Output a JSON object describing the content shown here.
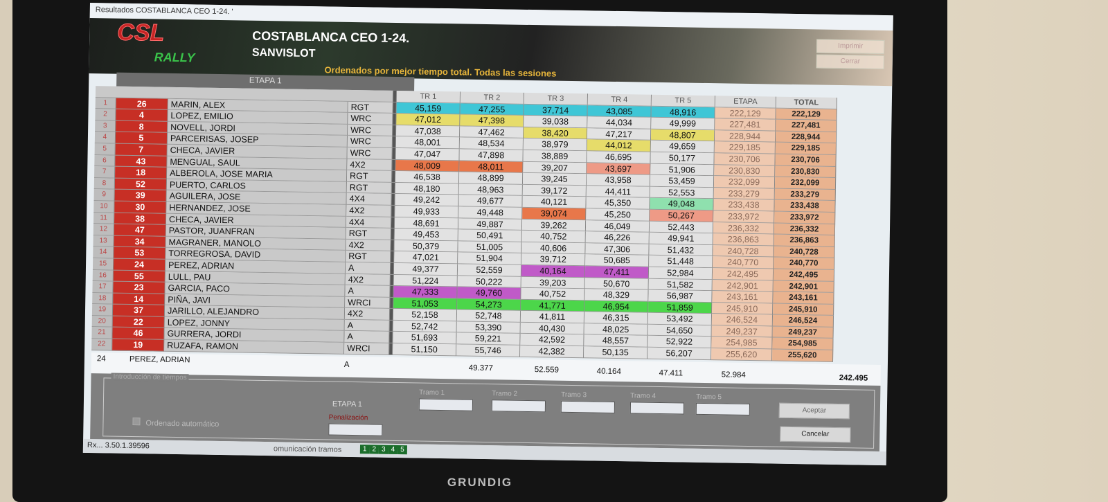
{
  "window_title": "Resultados COSTABLANCA CEO 1-24. '",
  "banner": {
    "logo_top": "CSL",
    "logo_bottom": "RALLY",
    "title": "COSTABLANCA CEO 1-24.",
    "subtitle": "SANVISLOT",
    "sort_note": "Ordenados por mejor tiempo total. Todas las sesiones",
    "btn_print": "Imprimir",
    "btn_close": "Cerrar"
  },
  "table": {
    "stage_header": "ETAPA 1",
    "columns": [
      "TR 1",
      "TR 2",
      "TR 3",
      "TR 4",
      "TR 5",
      "ETAPA",
      "TOTAL"
    ],
    "highlight_colors": {
      "cyan": "#3fc6d6",
      "yellow": "#e6dc6a",
      "orange": "#e8774a",
      "salmon": "#ee9a86",
      "magenta": "#c05ac8",
      "green": "#4cd64a",
      "mint": "#8fe0ae"
    },
    "rows": [
      {
        "pos": "1",
        "num": "26",
        "name": "MARIN, ALEX",
        "cls": "RGT",
        "t": [
          "45,159",
          "47,255",
          "37,714",
          "43,085",
          "48,916"
        ],
        "etapa": "222,129",
        "total": "222,129",
        "hl": [
          "cyan",
          "cyan",
          "cyan",
          "cyan",
          "cyan"
        ]
      },
      {
        "pos": "2",
        "num": "4",
        "name": "LOPEZ, EMILIO",
        "cls": "WRC",
        "t": [
          "47,012",
          "47,398",
          "39,038",
          "44,034",
          "49,999"
        ],
        "etapa": "227,481",
        "total": "227,481",
        "hl": [
          "yellow",
          "yellow",
          null,
          null,
          null
        ]
      },
      {
        "pos": "3",
        "num": "8",
        "name": "NOVELL, JORDI",
        "cls": "WRC",
        "t": [
          "47,038",
          "47,462",
          "38,420",
          "47,217",
          "48,807"
        ],
        "etapa": "228,944",
        "total": "228,944",
        "hl": [
          null,
          null,
          "yellow",
          null,
          "yellow"
        ]
      },
      {
        "pos": "4",
        "num": "5",
        "name": "PARCERISAS, JOSEP",
        "cls": "WRC",
        "t": [
          "48,001",
          "48,534",
          "38,979",
          "44,012",
          "49,659"
        ],
        "etapa": "229,185",
        "total": "229,185",
        "hl": [
          null,
          null,
          null,
          "yellow",
          null
        ]
      },
      {
        "pos": "5",
        "num": "7",
        "name": "CHECA, JAVIER",
        "cls": "WRC",
        "t": [
          "47,047",
          "47,898",
          "38,889",
          "46,695",
          "50,177"
        ],
        "etapa": "230,706",
        "total": "230,706",
        "hl": [
          null,
          null,
          null,
          null,
          null
        ]
      },
      {
        "pos": "6",
        "num": "43",
        "name": "MENGUAL, SAUL",
        "cls": "4X2",
        "t": [
          "48,009",
          "48,011",
          "39,207",
          "43,697",
          "51,906"
        ],
        "etapa": "230,830",
        "total": "230,830",
        "hl": [
          "orange",
          "orange",
          null,
          "salmon",
          null
        ]
      },
      {
        "pos": "7",
        "num": "18",
        "name": "ALBEROLA, JOSE MARIA",
        "cls": "RGT",
        "t": [
          "46,538",
          "48,899",
          "39,245",
          "43,958",
          "53,459"
        ],
        "etapa": "232,099",
        "total": "232,099",
        "hl": [
          null,
          null,
          null,
          null,
          null
        ]
      },
      {
        "pos": "8",
        "num": "52",
        "name": "PUERTO, CARLOS",
        "cls": "RGT",
        "t": [
          "48,180",
          "48,963",
          "39,172",
          "44,411",
          "52,553"
        ],
        "etapa": "233,279",
        "total": "233,279",
        "hl": [
          null,
          null,
          null,
          null,
          null
        ]
      },
      {
        "pos": "9",
        "num": "39",
        "name": "AGUILERA, JOSE",
        "cls": "4X4",
        "t": [
          "49,242",
          "49,677",
          "40,121",
          "45,350",
          "49,048"
        ],
        "etapa": "233,438",
        "total": "233,438",
        "hl": [
          null,
          null,
          null,
          null,
          "mint"
        ]
      },
      {
        "pos": "10",
        "num": "30",
        "name": "HERNANDEZ, JOSE",
        "cls": "4X2",
        "t": [
          "49,933",
          "49,448",
          "39,074",
          "45,250",
          "50,267"
        ],
        "etapa": "233,972",
        "total": "233,972",
        "hl": [
          null,
          null,
          "orange",
          null,
          "salmon"
        ]
      },
      {
        "pos": "11",
        "num": "38",
        "name": "CHECA, JAVIER",
        "cls": "4X4",
        "t": [
          "48,691",
          "49,887",
          "39,262",
          "46,049",
          "52,443"
        ],
        "etapa": "236,332",
        "total": "236,332",
        "hl": [
          null,
          null,
          null,
          null,
          null
        ]
      },
      {
        "pos": "12",
        "num": "47",
        "name": "PASTOR, JUANFRAN",
        "cls": "RGT",
        "t": [
          "49,453",
          "50,491",
          "40,752",
          "46,226",
          "49,941"
        ],
        "etapa": "236,863",
        "total": "236,863",
        "hl": [
          null,
          null,
          null,
          null,
          null
        ]
      },
      {
        "pos": "13",
        "num": "34",
        "name": "MAGRANER, MANOLO",
        "cls": "4X2",
        "t": [
          "50,379",
          "51,005",
          "40,606",
          "47,306",
          "51,432"
        ],
        "etapa": "240,728",
        "total": "240,728",
        "hl": [
          null,
          null,
          null,
          null,
          null
        ]
      },
      {
        "pos": "14",
        "num": "53",
        "name": "TORREGROSA, DAVID",
        "cls": "RGT",
        "t": [
          "47,021",
          "51,904",
          "39,712",
          "50,685",
          "51,448"
        ],
        "etapa": "240,770",
        "total": "240,770",
        "hl": [
          null,
          null,
          null,
          null,
          null
        ]
      },
      {
        "pos": "15",
        "num": "24",
        "name": "PEREZ, ADRIAN",
        "cls": "A",
        "t": [
          "49,377",
          "52,559",
          "40,164",
          "47,411",
          "52,984"
        ],
        "etapa": "242,495",
        "total": "242,495",
        "hl": [
          null,
          null,
          "magenta",
          "magenta",
          null
        ]
      },
      {
        "pos": "16",
        "num": "55",
        "name": "LULL, PAU",
        "cls": "4X2",
        "t": [
          "51,224",
          "50,222",
          "39,203",
          "50,670",
          "51,582"
        ],
        "etapa": "242,901",
        "total": "242,901",
        "hl": [
          null,
          null,
          null,
          null,
          null
        ]
      },
      {
        "pos": "17",
        "num": "23",
        "name": "GARCIA, PACO",
        "cls": "A",
        "t": [
          "47,333",
          "49,760",
          "40,752",
          "48,329",
          "56,987"
        ],
        "etapa": "243,161",
        "total": "243,161",
        "hl": [
          "magenta",
          "magenta",
          null,
          null,
          null
        ]
      },
      {
        "pos": "18",
        "num": "14",
        "name": "PIÑA, JAVI",
        "cls": "WRCI",
        "t": [
          "51,053",
          "54,273",
          "41,771",
          "46,954",
          "51,859"
        ],
        "etapa": "245,910",
        "total": "245,910",
        "hl": [
          "green",
          "green",
          "green",
          "green",
          "green"
        ]
      },
      {
        "pos": "19",
        "num": "37",
        "name": "JARILLO, ALEJANDRO",
        "cls": "4X2",
        "t": [
          "52,158",
          "52,748",
          "41,811",
          "46,315",
          "53,492"
        ],
        "etapa": "246,524",
        "total": "246,524",
        "hl": [
          null,
          null,
          null,
          null,
          null
        ]
      },
      {
        "pos": "20",
        "num": "22",
        "name": "LOPEZ, JONNY",
        "cls": "A",
        "t": [
          "52,742",
          "53,390",
          "40,430",
          "48,025",
          "54,650"
        ],
        "etapa": "249,237",
        "total": "249,237",
        "hl": [
          null,
          null,
          null,
          null,
          null
        ]
      },
      {
        "pos": "21",
        "num": "46",
        "name": "GURRERA, JORDI",
        "cls": "A",
        "t": [
          "51,693",
          "59,221",
          "42,592",
          "48,557",
          "52,922"
        ],
        "etapa": "254,985",
        "total": "254,985",
        "hl": [
          null,
          null,
          null,
          null,
          null
        ]
      },
      {
        "pos": "22",
        "num": "19",
        "name": "RUZAFA, RAMON",
        "cls": "WRCI",
        "t": [
          "51,150",
          "55,746",
          "42,382",
          "50,135",
          "56,207"
        ],
        "etapa": "255,620",
        "total": "255,620",
        "hl": [
          null,
          null,
          null,
          null,
          null
        ]
      }
    ]
  },
  "selected": {
    "num": "24",
    "name": "PEREZ, ADRIAN",
    "cls": "A",
    "t": [
      "49.377",
      "52.559",
      "40.164",
      "47.411",
      "52.984"
    ],
    "total": "242.495"
  },
  "entry": {
    "legend": "Introducción de tiempos",
    "stage_label": "ETAPA 1",
    "tramo_labels": [
      "Tramo 1",
      "Tramo 2",
      "Tramo 3",
      "Tramo 4",
      "Tramo 5"
    ],
    "penalty_label": "Penalización",
    "auto_sort_label": "Ordenado automático",
    "auto_sort_checked": false,
    "accept": "Aceptar",
    "cancel": "Cancelar"
  },
  "status": {
    "version": "Rx... 3.50.1.39596",
    "comm_label": "omunicación tramos",
    "comm_leds": [
      "1",
      "2",
      "3",
      "4",
      "5"
    ]
  },
  "monitor_brand": "GRUNDIG"
}
